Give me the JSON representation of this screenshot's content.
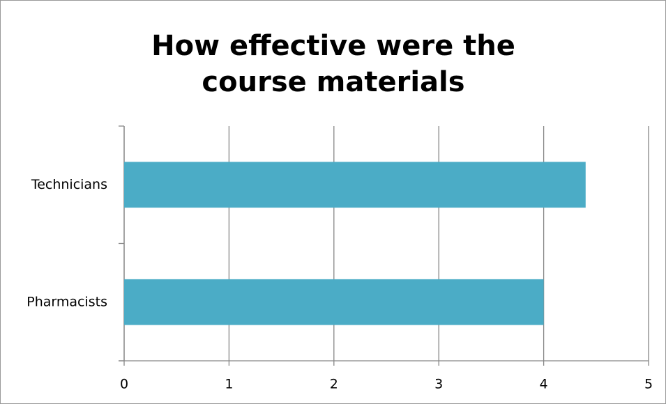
{
  "chart_data": {
    "type": "bar",
    "orientation": "horizontal",
    "title": "How effective were the course materials",
    "categories": [
      "Pharmacists",
      "Technicians"
    ],
    "values": [
      4.0,
      4.4
    ],
    "color": "#4bacc6",
    "xlim": [
      0,
      5
    ],
    "xticks": [
      0,
      1,
      2,
      3,
      4,
      5
    ],
    "grid": true
  }
}
